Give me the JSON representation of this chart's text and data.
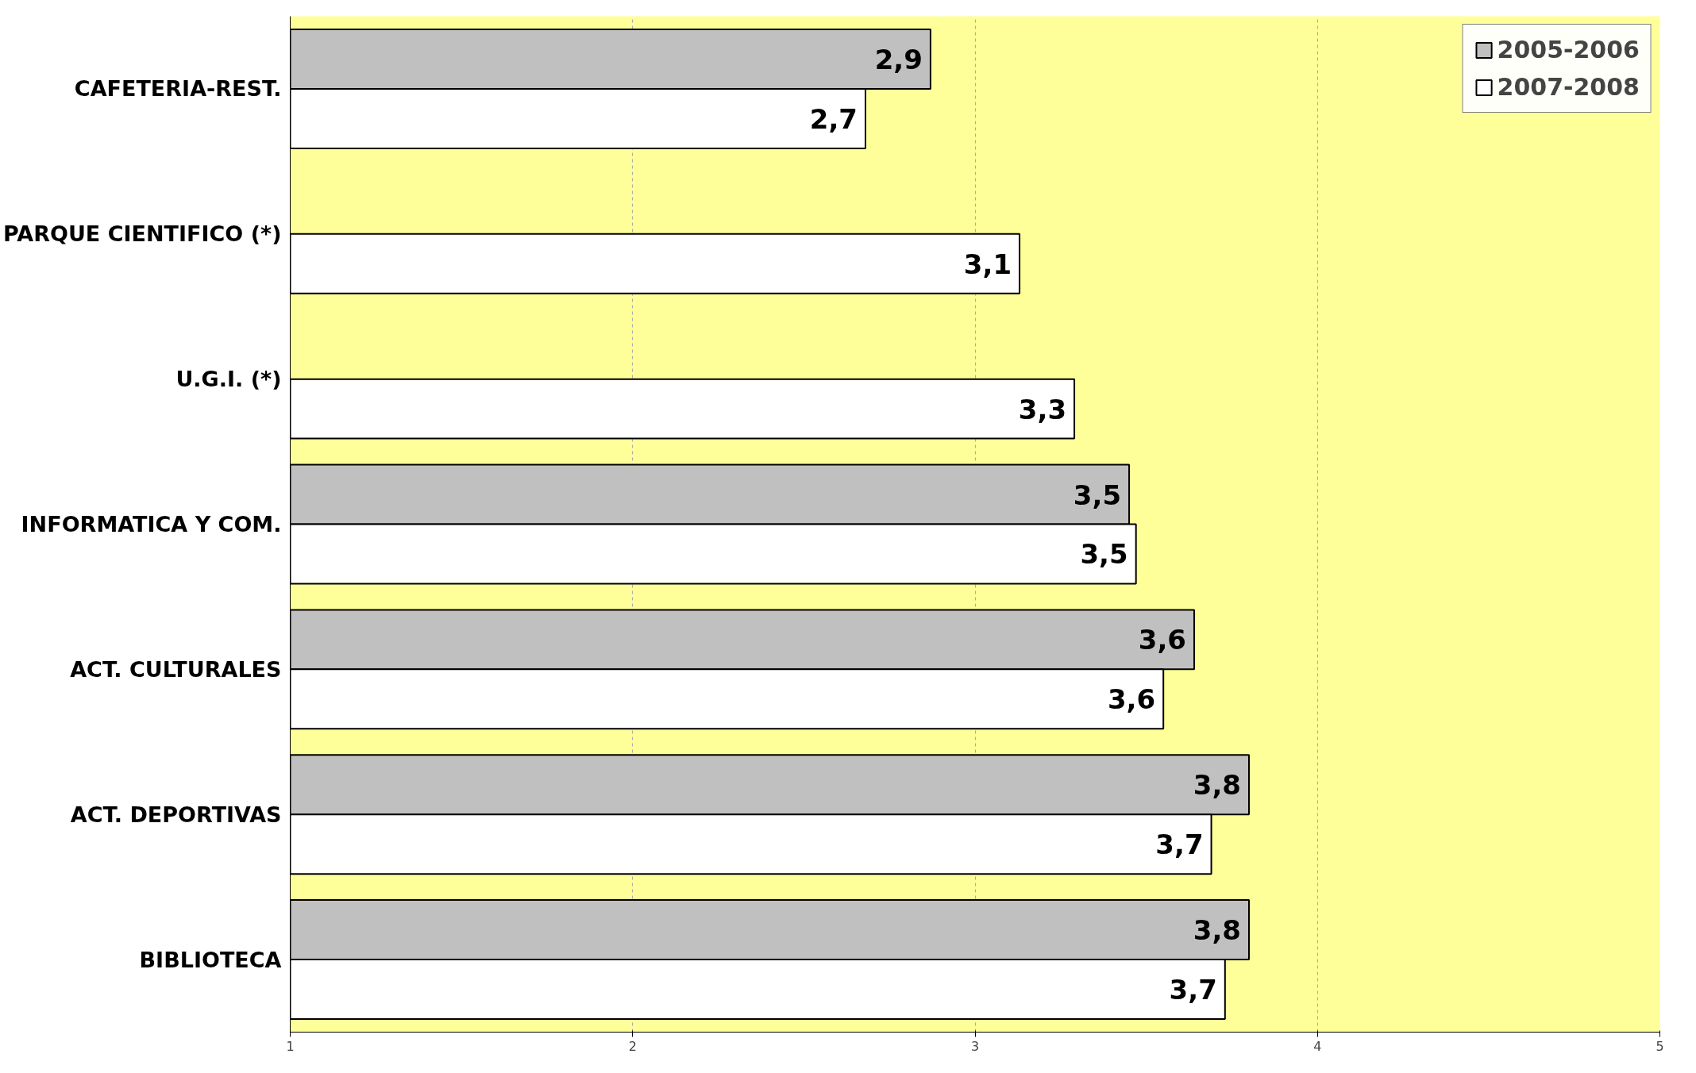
{
  "chart_data": {
    "type": "bar",
    "orientation": "horizontal",
    "categories": [
      "CAFETERIA-REST.",
      "PARQUE CIENTIFICO (*)",
      "U.G.I. (*)",
      "INFORMATICA Y COM.",
      "ACT. CULTURALES",
      "ACT. DEPORTIVAS",
      "BIBLIOTECA"
    ],
    "series": [
      {
        "name": "2005-2006",
        "color": "#c0c0c0",
        "values": [
          2.87,
          null,
          null,
          3.45,
          3.64,
          3.8,
          3.8
        ],
        "value_labels": [
          "2,9",
          null,
          null,
          "3,5",
          "3,6",
          "3,8",
          "3,8"
        ]
      },
      {
        "name": "2007-2008",
        "color": "#ffffff",
        "values": [
          2.68,
          3.13,
          3.29,
          3.47,
          3.55,
          3.69,
          3.73
        ],
        "value_labels": [
          "2,7",
          "3,1",
          "3,3",
          "3,5",
          "3,6",
          "3,7",
          "3,7"
        ]
      }
    ],
    "xlim": [
      1,
      5
    ],
    "xticks": [
      1,
      2,
      3,
      4,
      5
    ],
    "grid": "x",
    "legend": "top right"
  }
}
